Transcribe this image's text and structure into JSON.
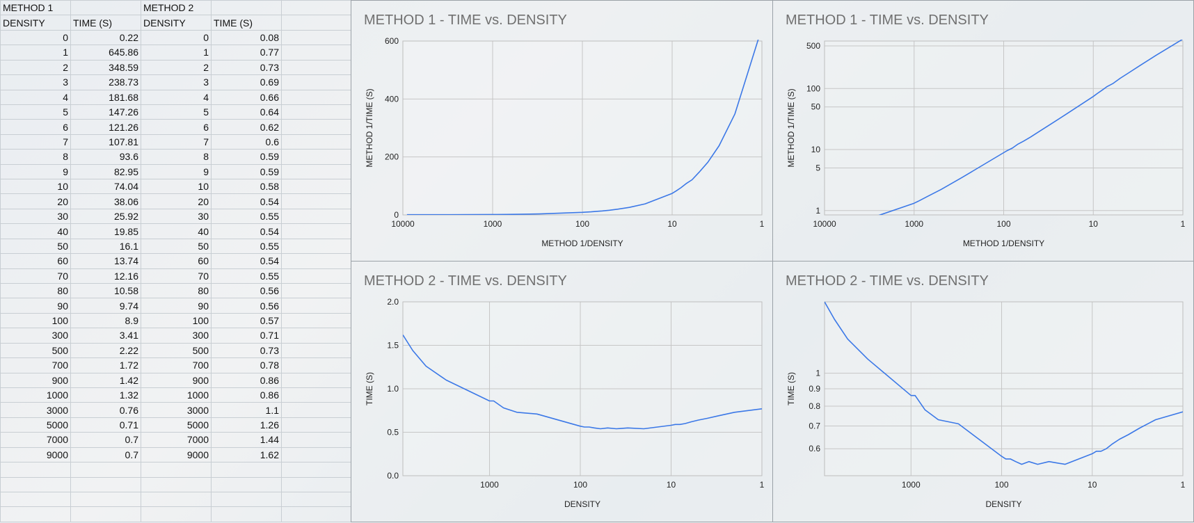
{
  "table": {
    "group_headers": [
      "METHOD 1",
      "",
      "METHOD 2",
      ""
    ],
    "col_headers": [
      "DENSITY",
      "TIME (S)",
      "DENSITY",
      "TIME (S)"
    ],
    "rows": [
      [
        "0",
        "0.22",
        "0",
        "0.08"
      ],
      [
        "1",
        "645.86",
        "1",
        "0.77"
      ],
      [
        "2",
        "348.59",
        "2",
        "0.73"
      ],
      [
        "3",
        "238.73",
        "3",
        "0.69"
      ],
      [
        "4",
        "181.68",
        "4",
        "0.66"
      ],
      [
        "5",
        "147.26",
        "5",
        "0.64"
      ],
      [
        "6",
        "121.26",
        "6",
        "0.62"
      ],
      [
        "7",
        "107.81",
        "7",
        "0.6"
      ],
      [
        "8",
        "93.6",
        "8",
        "0.59"
      ],
      [
        "9",
        "82.95",
        "9",
        "0.59"
      ],
      [
        "10",
        "74.04",
        "10",
        "0.58"
      ],
      [
        "20",
        "38.06",
        "20",
        "0.54"
      ],
      [
        "30",
        "25.92",
        "30",
        "0.55"
      ],
      [
        "40",
        "19.85",
        "40",
        "0.54"
      ],
      [
        "50",
        "16.1",
        "50",
        "0.55"
      ],
      [
        "60",
        "13.74",
        "60",
        "0.54"
      ],
      [
        "70",
        "12.16",
        "70",
        "0.55"
      ],
      [
        "80",
        "10.58",
        "80",
        "0.56"
      ],
      [
        "90",
        "9.74",
        "90",
        "0.56"
      ],
      [
        "100",
        "8.9",
        "100",
        "0.57"
      ],
      [
        "300",
        "3.41",
        "300",
        "0.71"
      ],
      [
        "500",
        "2.22",
        "500",
        "0.73"
      ],
      [
        "700",
        "1.72",
        "700",
        "0.78"
      ],
      [
        "900",
        "1.42",
        "900",
        "0.86"
      ],
      [
        "1000",
        "1.32",
        "1000",
        "0.86"
      ],
      [
        "3000",
        "0.76",
        "3000",
        "1.1"
      ],
      [
        "5000",
        "0.71",
        "5000",
        "1.26"
      ],
      [
        "7000",
        "0.7",
        "7000",
        "1.44"
      ],
      [
        "9000",
        "0.7",
        "9000",
        "1.62"
      ]
    ],
    "empty_rows": 4
  },
  "line_color": "#3b78e7",
  "chart_data": [
    {
      "type": "line",
      "title": "METHOD 1 - TIME vs. DENSITY",
      "xlabel": "METHOD 1/DENSITY",
      "ylabel": "METHOD 1/TIME (S)",
      "x_scale": "log",
      "x_reversed": true,
      "xlim": [
        10000,
        1
      ],
      "x_ticks": [
        10000,
        1000,
        100,
        10,
        1
      ],
      "x_tick_labels": [
        "10000",
        "1000",
        "100",
        "10",
        "1"
      ],
      "y_scale": "linear",
      "ylim": [
        0,
        600
      ],
      "y_ticks": [
        0,
        200,
        400,
        600
      ],
      "y_tick_labels": [
        "0",
        "200",
        "400",
        "600"
      ],
      "x": [
        9000,
        7000,
        5000,
        3000,
        1000,
        900,
        700,
        500,
        300,
        100,
        90,
        80,
        70,
        60,
        50,
        40,
        30,
        20,
        10,
        9,
        8,
        7,
        6,
        5,
        4,
        3,
        2,
        1
      ],
      "y": [
        0.7,
        0.7,
        0.71,
        0.76,
        1.32,
        1.42,
        1.72,
        2.22,
        3.41,
        8.9,
        9.74,
        10.58,
        12.16,
        13.74,
        16.1,
        19.85,
        25.92,
        38.06,
        74.04,
        82.95,
        93.6,
        107.81,
        121.26,
        147.26,
        181.68,
        238.73,
        348.59,
        645.86
      ]
    },
    {
      "type": "line",
      "title": "METHOD 1 - TIME vs. DENSITY",
      "xlabel": "METHOD 1/DENSITY",
      "ylabel": "METHOD 1/TIME (S)",
      "x_scale": "log",
      "x_reversed": true,
      "xlim": [
        10000,
        1
      ],
      "x_ticks": [
        10000,
        1000,
        100,
        10,
        1
      ],
      "x_tick_labels": [
        "10000",
        "1000",
        "100",
        "10",
        "1"
      ],
      "y_scale": "log",
      "ylim": [
        0.85,
        600
      ],
      "y_ticks": [
        1,
        5,
        10,
        50,
        100,
        500
      ],
      "y_tick_labels": [
        "1",
        "5",
        "10",
        "50",
        "100",
        "500"
      ],
      "x": [
        9000,
        7000,
        5000,
        3000,
        1000,
        900,
        700,
        500,
        300,
        100,
        90,
        80,
        70,
        60,
        50,
        40,
        30,
        20,
        10,
        9,
        8,
        7,
        6,
        5,
        4,
        3,
        2,
        1
      ],
      "y": [
        0.7,
        0.7,
        0.71,
        0.76,
        1.32,
        1.42,
        1.72,
        2.22,
        3.41,
        8.9,
        9.74,
        10.58,
        12.16,
        13.74,
        16.1,
        19.85,
        25.92,
        38.06,
        74.04,
        82.95,
        93.6,
        107.81,
        121.26,
        147.26,
        181.68,
        238.73,
        348.59,
        645.86
      ]
    },
    {
      "type": "line",
      "title": "METHOD 2 - TIME vs. DENSITY",
      "xlabel": "DENSITY",
      "ylabel": "TIME (S)",
      "x_scale": "log",
      "x_reversed": true,
      "xlim": [
        9000,
        1
      ],
      "x_ticks": [
        1000,
        100,
        10,
        1
      ],
      "x_tick_labels": [
        "1000",
        "100",
        "10",
        "1"
      ],
      "y_scale": "linear",
      "ylim": [
        0,
        2
      ],
      "y_ticks": [
        0,
        0.5,
        1,
        1.5,
        2
      ],
      "y_tick_labels": [
        "0.0",
        "0.5",
        "1.0",
        "1.5",
        "2.0"
      ],
      "x": [
        9000,
        7000,
        5000,
        3000,
        1000,
        900,
        700,
        500,
        300,
        100,
        90,
        80,
        70,
        60,
        50,
        40,
        30,
        20,
        10,
        9,
        8,
        7,
        6,
        5,
        4,
        3,
        2,
        1
      ],
      "y": [
        1.62,
        1.44,
        1.26,
        1.1,
        0.86,
        0.86,
        0.78,
        0.73,
        0.71,
        0.57,
        0.56,
        0.56,
        0.55,
        0.54,
        0.55,
        0.54,
        0.55,
        0.54,
        0.58,
        0.59,
        0.59,
        0.6,
        0.62,
        0.64,
        0.66,
        0.69,
        0.73,
        0.77
      ]
    },
    {
      "type": "line",
      "title": "METHOD 2 - TIME vs. DENSITY",
      "xlabel": "DENSITY",
      "ylabel": "TIME (S)",
      "x_scale": "log",
      "x_reversed": true,
      "xlim": [
        9000,
        1
      ],
      "x_ticks": [
        1000,
        100,
        10,
        1
      ],
      "x_tick_labels": [
        "1000",
        "100",
        "10",
        "1"
      ],
      "y_scale": "log",
      "ylim": [
        0.5,
        1.62
      ],
      "y_ticks": [
        0.6,
        0.7,
        0.8,
        0.9,
        1
      ],
      "y_tick_labels": [
        "0.6",
        "0.7",
        "0.8",
        "0.9",
        "1"
      ],
      "x": [
        9000,
        7000,
        5000,
        3000,
        1000,
        900,
        700,
        500,
        300,
        100,
        90,
        80,
        70,
        60,
        50,
        40,
        30,
        20,
        10,
        9,
        8,
        7,
        6,
        5,
        4,
        3,
        2,
        1
      ],
      "y": [
        1.62,
        1.44,
        1.26,
        1.1,
        0.86,
        0.86,
        0.78,
        0.73,
        0.71,
        0.57,
        0.56,
        0.56,
        0.55,
        0.54,
        0.55,
        0.54,
        0.55,
        0.54,
        0.58,
        0.59,
        0.59,
        0.6,
        0.62,
        0.64,
        0.66,
        0.69,
        0.73,
        0.77
      ]
    }
  ]
}
